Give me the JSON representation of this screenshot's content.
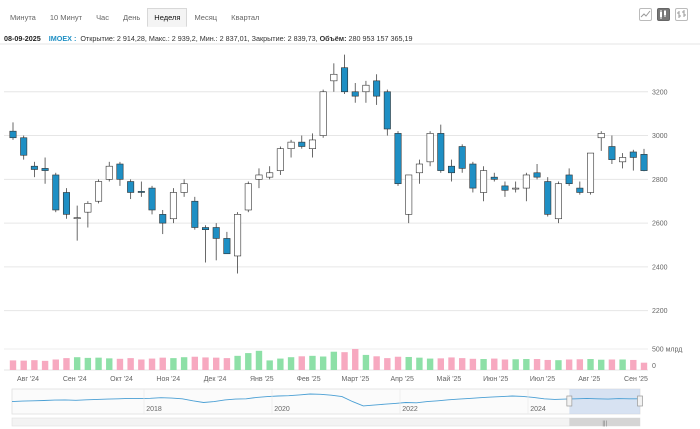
{
  "tabs": [
    {
      "label": "Минута",
      "active": false
    },
    {
      "label": "10 Минут",
      "active": false
    },
    {
      "label": "Час",
      "active": false
    },
    {
      "label": "День",
      "active": false
    },
    {
      "label": "Неделя",
      "active": true
    },
    {
      "label": "Месяц",
      "active": false
    },
    {
      "label": "Квартал",
      "active": false
    }
  ],
  "toolbar": {
    "icons": [
      "line-chart-icon",
      "candlestick-chart-icon",
      "ohlc-bar-chart-icon"
    ],
    "active_icon": "candlestick-chart-icon"
  },
  "info": {
    "date": "08-09-2025",
    "ticker": "IMOEX :",
    "open_label": "Открытие:",
    "open": "2 914,28",
    "high_label": "Макс.:",
    "high": "2 939,2",
    "low_label": "Мин.:",
    "low": "2 837,01",
    "close_label": "Закрытие:",
    "close": "2 839,73",
    "volume_label": "Объём:",
    "volume": "280 953 157 365,19"
  },
  "colors": {
    "up": "#ffffff",
    "down": "#1e8fc4",
    "wick": "#444444",
    "vol_up": "#8de0a7",
    "vol_down": "#f7a9c0",
    "nav_line": "#4a9fd4",
    "nav_window": "#c7d7ee"
  },
  "chart_data": {
    "type": "candlestick",
    "y_ticks": [
      2200,
      2400,
      2600,
      2800,
      3000,
      3200
    ],
    "ylim": [
      2130,
      3400
    ],
    "x_labels": [
      "Авг '24",
      "Сен '24",
      "Окт '24",
      "Ноя '24",
      "Дек '24",
      "Янв '25",
      "Фев '25",
      "Март '25",
      "Апр '25",
      "Май '25",
      "Июн '25",
      "Июл '25",
      "Авг '25",
      "Сен '25"
    ],
    "candles": [
      {
        "o": 3020,
        "h": 3060,
        "l": 2980,
        "c": 2990
      },
      {
        "o": 2990,
        "h": 3000,
        "l": 2890,
        "c": 2910
      },
      {
        "o": 2860,
        "h": 2880,
        "l": 2810,
        "c": 2845
      },
      {
        "o": 2850,
        "h": 2900,
        "l": 2780,
        "c": 2840
      },
      {
        "o": 2820,
        "h": 2830,
        "l": 2650,
        "c": 2660
      },
      {
        "o": 2740,
        "h": 2760,
        "l": 2620,
        "c": 2640
      },
      {
        "o": 2625,
        "h": 2680,
        "l": 2520,
        "c": 2625
      },
      {
        "o": 2650,
        "h": 2700,
        "l": 2580,
        "c": 2690
      },
      {
        "o": 2700,
        "h": 2800,
        "l": 2690,
        "c": 2790
      },
      {
        "o": 2800,
        "h": 2880,
        "l": 2790,
        "c": 2860
      },
      {
        "o": 2870,
        "h": 2880,
        "l": 2770,
        "c": 2800
      },
      {
        "o": 2790,
        "h": 2800,
        "l": 2710,
        "c": 2740
      },
      {
        "o": 2745,
        "h": 2790,
        "l": 2720,
        "c": 2740
      },
      {
        "o": 2760,
        "h": 2770,
        "l": 2640,
        "c": 2660
      },
      {
        "o": 2640,
        "h": 2660,
        "l": 2550,
        "c": 2600
      },
      {
        "o": 2620,
        "h": 2760,
        "l": 2600,
        "c": 2740
      },
      {
        "o": 2740,
        "h": 2800,
        "l": 2720,
        "c": 2780
      },
      {
        "o": 2700,
        "h": 2720,
        "l": 2570,
        "c": 2580
      },
      {
        "o": 2580,
        "h": 2590,
        "l": 2420,
        "c": 2570
      },
      {
        "o": 2580,
        "h": 2600,
        "l": 2430,
        "c": 2530
      },
      {
        "o": 2530,
        "h": 2560,
        "l": 2460,
        "c": 2460
      },
      {
        "o": 2450,
        "h": 2650,
        "l": 2370,
        "c": 2640
      },
      {
        "o": 2660,
        "h": 2790,
        "l": 2650,
        "c": 2780
      },
      {
        "o": 2800,
        "h": 2850,
        "l": 2760,
        "c": 2820
      },
      {
        "o": 2810,
        "h": 2860,
        "l": 2800,
        "c": 2830
      },
      {
        "o": 2840,
        "h": 2950,
        "l": 2820,
        "c": 2940
      },
      {
        "o": 2940,
        "h": 2980,
        "l": 2900,
        "c": 2970
      },
      {
        "o": 2970,
        "h": 3000,
        "l": 2940,
        "c": 2950
      },
      {
        "o": 2940,
        "h": 3010,
        "l": 2900,
        "c": 2980
      },
      {
        "o": 3000,
        "h": 3210,
        "l": 2990,
        "c": 3200
      },
      {
        "o": 3250,
        "h": 3330,
        "l": 3200,
        "c": 3280
      },
      {
        "o": 3310,
        "h": 3370,
        "l": 3190,
        "c": 3200
      },
      {
        "o": 3200,
        "h": 3240,
        "l": 3150,
        "c": 3180
      },
      {
        "o": 3200,
        "h": 3250,
        "l": 3150,
        "c": 3230
      },
      {
        "o": 3250,
        "h": 3280,
        "l": 3140,
        "c": 3180
      },
      {
        "o": 3200,
        "h": 3210,
        "l": 3000,
        "c": 3030
      },
      {
        "o": 3010,
        "h": 3020,
        "l": 2770,
        "c": 2780
      },
      {
        "o": 2640,
        "h": 2820,
        "l": 2600,
        "c": 2820
      },
      {
        "o": 2830,
        "h": 2890,
        "l": 2780,
        "c": 2870
      },
      {
        "o": 2880,
        "h": 3020,
        "l": 2860,
        "c": 3010
      },
      {
        "o": 3010,
        "h": 3050,
        "l": 2830,
        "c": 2840
      },
      {
        "o": 2860,
        "h": 2890,
        "l": 2790,
        "c": 2830
      },
      {
        "o": 2950,
        "h": 2960,
        "l": 2830,
        "c": 2850
      },
      {
        "o": 2870,
        "h": 2880,
        "l": 2740,
        "c": 2760
      },
      {
        "o": 2740,
        "h": 2860,
        "l": 2700,
        "c": 2840
      },
      {
        "o": 2810,
        "h": 2830,
        "l": 2790,
        "c": 2800
      },
      {
        "o": 2770,
        "h": 2790,
        "l": 2720,
        "c": 2750
      },
      {
        "o": 2760,
        "h": 2790,
        "l": 2740,
        "c": 2760
      },
      {
        "o": 2760,
        "h": 2830,
        "l": 2700,
        "c": 2820
      },
      {
        "o": 2830,
        "h": 2870,
        "l": 2800,
        "c": 2810
      },
      {
        "o": 2790,
        "h": 2810,
        "l": 2630,
        "c": 2640
      },
      {
        "o": 2620,
        "h": 2790,
        "l": 2600,
        "c": 2780
      },
      {
        "o": 2820,
        "h": 2850,
        "l": 2770,
        "c": 2780
      },
      {
        "o": 2760,
        "h": 2790,
        "l": 2730,
        "c": 2740
      },
      {
        "o": 2740,
        "h": 2920,
        "l": 2730,
        "c": 2920
      },
      {
        "o": 2990,
        "h": 3020,
        "l": 2930,
        "c": 3010
      },
      {
        "o": 2950,
        "h": 3000,
        "l": 2870,
        "c": 2890
      },
      {
        "o": 2880,
        "h": 2920,
        "l": 2850,
        "c": 2900
      },
      {
        "o": 2925,
        "h": 2935,
        "l": 2840,
        "c": 2900
      },
      {
        "o": 2914.28,
        "h": 2939.2,
        "l": 2837.01,
        "c": 2839.73
      }
    ],
    "volume_unit_label": "500 млрд",
    "volume_ticks": [
      {
        "v": 0,
        "label": "0"
      }
    ],
    "volume_max": 700,
    "volume": [
      210,
      205,
      215,
      200,
      230,
      260,
      280,
      265,
      270,
      255,
      245,
      260,
      230,
      250,
      270,
      260,
      280,
      290,
      275,
      270,
      260,
      310,
      370,
      420,
      210,
      250,
      280,
      300,
      310,
      295,
      400,
      390,
      460,
      330,
      300,
      260,
      290,
      285,
      270,
      250,
      255,
      275,
      260,
      245,
      240,
      250,
      230,
      235,
      240,
      240,
      220,
      215,
      230,
      235,
      240,
      225,
      230,
      230,
      220,
      160
    ],
    "navigator": {
      "x_labels": [
        "2018",
        "2020",
        "2022",
        "2024"
      ],
      "series": [
        0.55,
        0.58,
        0.6,
        0.62,
        0.64,
        0.65,
        0.63,
        0.66,
        0.68,
        0.7,
        0.72,
        0.74,
        0.73,
        0.75,
        0.78,
        0.76,
        0.72,
        0.6,
        0.5,
        0.55,
        0.65,
        0.7,
        0.72,
        0.8,
        0.85,
        0.88,
        0.9,
        0.95,
        1.0,
        0.98,
        0.93,
        0.85,
        0.55,
        0.3,
        0.35,
        0.4,
        0.45,
        0.5,
        0.48,
        0.55,
        0.6,
        0.66,
        0.7,
        0.74,
        0.78,
        0.82,
        0.85,
        0.88,
        0.86,
        0.8,
        0.72,
        0.68,
        0.7,
        0.72,
        0.74,
        0.72,
        0.7,
        0.73,
        0.72,
        0.72
      ],
      "window_start": 0.8875,
      "window_end": 1.0
    }
  }
}
